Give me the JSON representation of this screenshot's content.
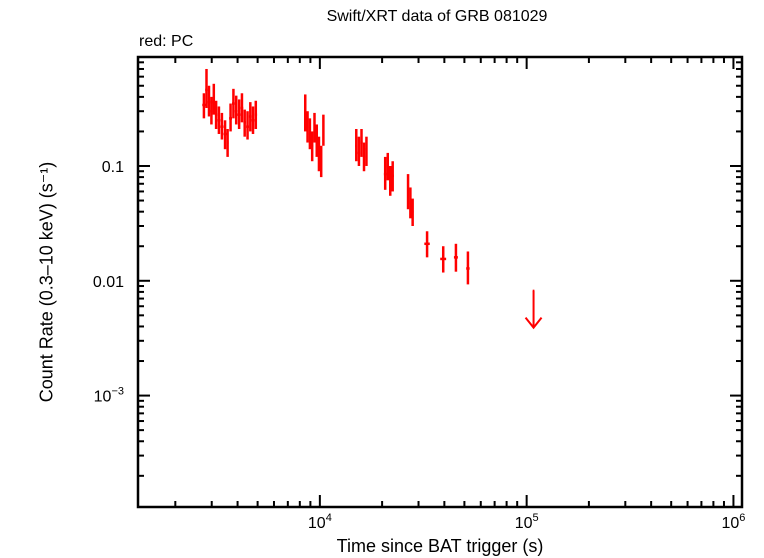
{
  "chart": {
    "title": "Swift/XRT data of GRB 081029",
    "subtitle": "red: PC",
    "xlabel": "Time since BAT trigger (s)",
    "ylabel": "Count Rate (0.3–10 keV) (s⁻¹)"
  },
  "chart_data": {
    "type": "scatter",
    "title": "Swift/XRT data of GRB 081029",
    "subtitle": "red: PC",
    "xlabel": "Time since BAT trigger (s)",
    "ylabel": "Count Rate (0.3–10 keV) (s^-1)",
    "xscale": "log",
    "yscale": "log",
    "xlim": [
      1320,
      1100000
    ],
    "ylim": [
      0.000107,
      0.89
    ],
    "x_ticks": [
      {
        "value": 10000,
        "label": "10^4"
      },
      {
        "value": 100000,
        "label": "10^5"
      },
      {
        "value": 1000000,
        "label": "10^6"
      }
    ],
    "y_ticks": [
      {
        "value": 0.1,
        "label": "0.1"
      },
      {
        "value": 0.01,
        "label": "0.01"
      },
      {
        "value": 0.001,
        "label": "10^-3"
      }
    ],
    "grid": false,
    "legend": "red: PC (top-left text)",
    "color": "#ff0000",
    "series": [
      {
        "name": "PC",
        "color": "#ff0000",
        "points": [
          {
            "t": 2750,
            "rate": 0.34,
            "t_lo": 2700,
            "t_hi": 2800,
            "r_lo": 0.26,
            "r_hi": 0.43
          },
          {
            "t": 2830,
            "rate": 0.46,
            "t_lo": 2790,
            "t_hi": 2870,
            "r_lo": 0.32,
            "r_hi": 0.7
          },
          {
            "t": 2910,
            "rate": 0.36,
            "t_lo": 2870,
            "t_hi": 2950,
            "r_lo": 0.27,
            "r_hi": 0.5
          },
          {
            "t": 2990,
            "rate": 0.3,
            "t_lo": 2950,
            "t_hi": 3030,
            "r_lo": 0.23,
            "r_hi": 0.4
          },
          {
            "t": 3070,
            "rate": 0.36,
            "t_lo": 3030,
            "t_hi": 3110,
            "r_lo": 0.28,
            "r_hi": 0.52
          },
          {
            "t": 3150,
            "rate": 0.28,
            "t_lo": 3110,
            "t_hi": 3190,
            "r_lo": 0.21,
            "r_hi": 0.37
          },
          {
            "t": 3250,
            "rate": 0.25,
            "t_lo": 3200,
            "t_hi": 3300,
            "r_lo": 0.19,
            "r_hi": 0.33
          },
          {
            "t": 3360,
            "rate": 0.22,
            "t_lo": 3300,
            "t_hi": 3420,
            "r_lo": 0.17,
            "r_hi": 0.29
          },
          {
            "t": 3480,
            "rate": 0.19,
            "t_lo": 3420,
            "t_hi": 3540,
            "r_lo": 0.14,
            "r_hi": 0.25
          },
          {
            "t": 3580,
            "rate": 0.16,
            "t_lo": 3540,
            "t_hi": 3620,
            "r_lo": 0.12,
            "r_hi": 0.21
          },
          {
            "t": 3700,
            "rate": 0.26,
            "t_lo": 3640,
            "t_hi": 3760,
            "r_lo": 0.2,
            "r_hi": 0.35
          },
          {
            "t": 3820,
            "rate": 0.35,
            "t_lo": 3760,
            "t_hi": 3880,
            "r_lo": 0.26,
            "r_hi": 0.47
          },
          {
            "t": 3940,
            "rate": 0.3,
            "t_lo": 3880,
            "t_hi": 4000,
            "r_lo": 0.23,
            "r_hi": 0.41
          },
          {
            "t": 4070,
            "rate": 0.28,
            "t_lo": 4000,
            "t_hi": 4140,
            "r_lo": 0.21,
            "r_hi": 0.38
          },
          {
            "t": 4200,
            "rate": 0.32,
            "t_lo": 4140,
            "t_hi": 4260,
            "r_lo": 0.24,
            "r_hi": 0.43
          },
          {
            "t": 4330,
            "rate": 0.24,
            "t_lo": 4270,
            "t_hi": 4390,
            "r_lo": 0.18,
            "r_hi": 0.31
          },
          {
            "t": 4470,
            "rate": 0.22,
            "t_lo": 4400,
            "t_hi": 4540,
            "r_lo": 0.17,
            "r_hi": 0.3
          },
          {
            "t": 4610,
            "rate": 0.27,
            "t_lo": 4540,
            "t_hi": 4680,
            "r_lo": 0.2,
            "r_hi": 0.36
          },
          {
            "t": 4750,
            "rate": 0.25,
            "t_lo": 4680,
            "t_hi": 4820,
            "r_lo": 0.19,
            "r_hi": 0.33
          },
          {
            "t": 4900,
            "rate": 0.28,
            "t_lo": 4830,
            "t_hi": 4970,
            "r_lo": 0.21,
            "r_hi": 0.37
          },
          {
            "t": 8500,
            "rate": 0.27,
            "t_lo": 8400,
            "t_hi": 8600,
            "r_lo": 0.2,
            "r_hi": 0.42
          },
          {
            "t": 8720,
            "rate": 0.22,
            "t_lo": 8620,
            "t_hi": 8820,
            "r_lo": 0.16,
            "r_hi": 0.3
          },
          {
            "t": 8950,
            "rate": 0.19,
            "t_lo": 8850,
            "t_hi": 9050,
            "r_lo": 0.14,
            "r_hi": 0.26
          },
          {
            "t": 9180,
            "rate": 0.15,
            "t_lo": 9080,
            "t_hi": 9280,
            "r_lo": 0.11,
            "r_hi": 0.2
          },
          {
            "t": 9420,
            "rate": 0.21,
            "t_lo": 9320,
            "t_hi": 9520,
            "r_lo": 0.16,
            "r_hi": 0.29
          },
          {
            "t": 9660,
            "rate": 0.17,
            "t_lo": 9560,
            "t_hi": 9760,
            "r_lo": 0.12,
            "r_hi": 0.23
          },
          {
            "t": 9900,
            "rate": 0.13,
            "t_lo": 9800,
            "t_hi": 10000,
            "r_lo": 0.09,
            "r_hi": 0.18
          },
          {
            "t": 10150,
            "rate": 0.11,
            "t_lo": 10050,
            "t_hi": 10250,
            "r_lo": 0.08,
            "r_hi": 0.15
          },
          {
            "t": 10400,
            "rate": 0.2,
            "t_lo": 10300,
            "t_hi": 10500,
            "r_lo": 0.15,
            "r_hi": 0.28
          },
          {
            "t": 15000,
            "rate": 0.15,
            "t_lo": 14800,
            "t_hi": 15200,
            "r_lo": 0.11,
            "r_hi": 0.21
          },
          {
            "t": 15450,
            "rate": 0.13,
            "t_lo": 15250,
            "t_hi": 15650,
            "r_lo": 0.1,
            "r_hi": 0.18
          },
          {
            "t": 15900,
            "rate": 0.16,
            "t_lo": 15700,
            "t_hi": 16100,
            "r_lo": 0.12,
            "r_hi": 0.21
          },
          {
            "t": 16350,
            "rate": 0.12,
            "t_lo": 16150,
            "t_hi": 16550,
            "r_lo": 0.09,
            "r_hi": 0.16
          },
          {
            "t": 16800,
            "rate": 0.14,
            "t_lo": 16600,
            "t_hi": 17000,
            "r_lo": 0.1,
            "r_hi": 0.18
          },
          {
            "t": 20700,
            "rate": 0.085,
            "t_lo": 20400,
            "t_hi": 21000,
            "r_lo": 0.062,
            "r_hi": 0.12
          },
          {
            "t": 21300,
            "rate": 0.1,
            "t_lo": 21000,
            "t_hi": 21600,
            "r_lo": 0.075,
            "r_hi": 0.13
          },
          {
            "t": 21900,
            "rate": 0.075,
            "t_lo": 21600,
            "t_hi": 22200,
            "r_lo": 0.055,
            "r_hi": 0.1
          },
          {
            "t": 22500,
            "rate": 0.082,
            "t_lo": 22200,
            "t_hi": 22800,
            "r_lo": 0.06,
            "r_hi": 0.11
          },
          {
            "t": 26700,
            "rate": 0.06,
            "t_lo": 26400,
            "t_hi": 27000,
            "r_lo": 0.042,
            "r_hi": 0.085
          },
          {
            "t": 27400,
            "rate": 0.048,
            "t_lo": 27100,
            "t_hi": 27700,
            "r_lo": 0.035,
            "r_hi": 0.065
          },
          {
            "t": 28100,
            "rate": 0.04,
            "t_lo": 27800,
            "t_hi": 28400,
            "r_lo": 0.03,
            "r_hi": 0.052
          },
          {
            "t": 33000,
            "rate": 0.021,
            "t_lo": 32000,
            "t_hi": 34000,
            "r_lo": 0.016,
            "r_hi": 0.027
          },
          {
            "t": 39500,
            "rate": 0.0155,
            "t_lo": 38200,
            "t_hi": 40800,
            "r_lo": 0.0118,
            "r_hi": 0.02
          },
          {
            "t": 45500,
            "rate": 0.016,
            "t_lo": 44500,
            "t_hi": 46500,
            "r_lo": 0.012,
            "r_hi": 0.021
          },
          {
            "t": 52000,
            "rate": 0.0128,
            "t_lo": 51000,
            "t_hi": 53000,
            "r_lo": 0.0093,
            "r_hi": 0.018
          }
        ]
      },
      {
        "name": "PC upper limit",
        "color": "#ff0000",
        "type": "upper_limit",
        "points": [
          {
            "t": 108000,
            "rate_upper": 0.0082,
            "t_lo": 107000,
            "t_hi": 109000
          }
        ]
      }
    ]
  }
}
